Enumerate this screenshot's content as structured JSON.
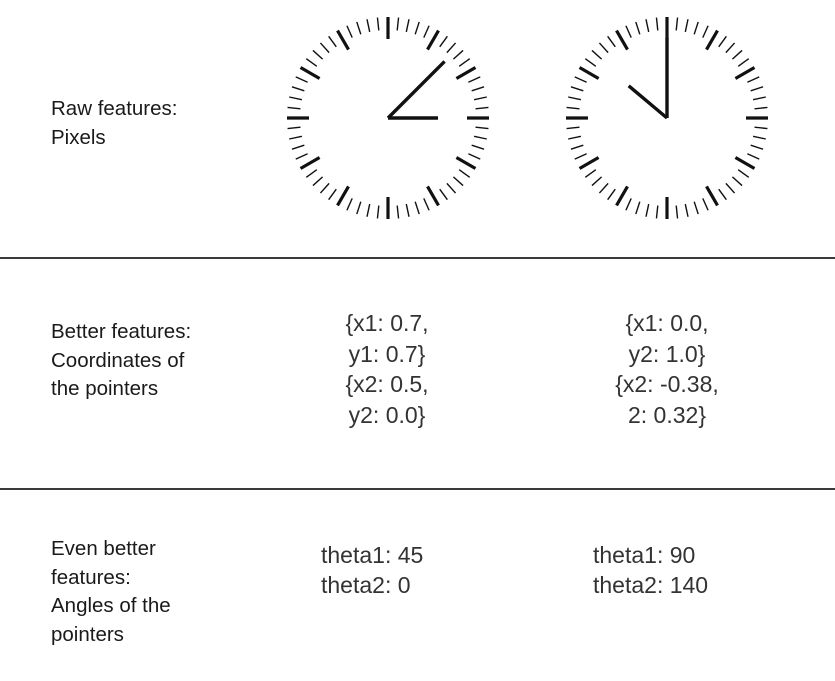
{
  "rows": [
    {
      "label_lines": [
        "Raw features:",
        "Pixels"
      ]
    },
    {
      "label_lines": [
        "Better features:",
        "Coordinates of",
        "the pointers"
      ]
    },
    {
      "label_lines": [
        "Even better",
        "features:",
        "Angles of the",
        "pointers"
      ]
    }
  ],
  "clocks": [
    {
      "name": "clock-left",
      "hand_angles_deg": [
        45,
        0
      ]
    },
    {
      "name": "clock-right",
      "hand_angles_deg": [
        90,
        140
      ]
    }
  ],
  "coordinates": {
    "left": [
      "{x1: 0.7,",
      "y1: 0.7}",
      "{x2: 0.5,",
      "y2: 0.0}"
    ],
    "right": [
      "{x1: 0.0,",
      "y2: 1.0}",
      "{x2: -0.38,",
      "2: 0.32}"
    ]
  },
  "angles": {
    "left": [
      "theta1: 45",
      "theta2: 0"
    ],
    "right": [
      "theta1: 90",
      "theta2: 140"
    ]
  },
  "colors": {
    "text": "#1a1a1a",
    "value_text": "#333333",
    "divider": "#3a3a3a",
    "clock_marks": "#111111"
  }
}
